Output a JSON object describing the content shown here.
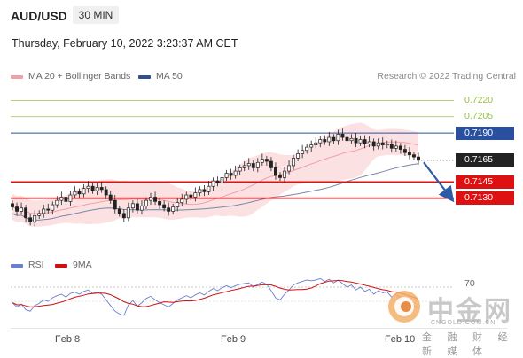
{
  "header": {
    "symbol": "AUD/USD",
    "timeframe": "30 MIN",
    "datetime": "Thursday, February 10, 2022 3:23:37 AM CET"
  },
  "legend": {
    "items": [
      {
        "label": "MA 20 + Bollinger Bands",
        "color": "#f0a0a8"
      },
      {
        "label": "MA 50",
        "color": "#2f4f8f"
      }
    ],
    "credit": "Research © 2022 Trading Central"
  },
  "rsi_legend": {
    "items": [
      {
        "label": "RSI",
        "color": "#6a7fd0"
      },
      {
        "label": "9MA",
        "color": "#cc1111"
      }
    ],
    "level_label": "70"
  },
  "watermark": {
    "name": "中金网",
    "site": "CNGOLD.COM.CN",
    "tagline": "金 融 财 经 新 媒 体"
  },
  "chart_data": {
    "type": "candlestick",
    "yrange": [
      0.708,
      0.7235
    ],
    "current_price": {
      "value": "0.7165",
      "color": "#222222"
    },
    "levels": [
      {
        "value": 0.722,
        "label": "0.7220",
        "kind": "resistance",
        "color": "#9bbf4a"
      },
      {
        "value": 0.7205,
        "label": "0.7205",
        "kind": "resistance",
        "color": "#9bbf4a"
      },
      {
        "value": 0.719,
        "label": "0.7190",
        "kind": "pivot",
        "color": "#2b4f9f"
      },
      {
        "value": 0.7145,
        "label": "0.7145",
        "kind": "support",
        "color": "#dd1111"
      },
      {
        "value": 0.713,
        "label": "0.7130",
        "kind": "support",
        "color": "#dd1111"
      }
    ],
    "x_ticks": [
      "Feb 8",
      "Feb 9",
      "Feb 10"
    ],
    "arrow": {
      "from": 0.7163,
      "to": 0.7132,
      "color": "#2b5aa7"
    },
    "closes": [
      0.7122,
      0.7118,
      0.7121,
      0.7112,
      0.7108,
      0.7114,
      0.7116,
      0.712,
      0.7119,
      0.7124,
      0.7128,
      0.7131,
      0.7127,
      0.7133,
      0.7136,
      0.7134,
      0.7139,
      0.7141,
      0.7137,
      0.714,
      0.7138,
      0.7133,
      0.7128,
      0.712,
      0.7116,
      0.7112,
      0.7121,
      0.7125,
      0.7119,
      0.7123,
      0.7128,
      0.7131,
      0.7127,
      0.7124,
      0.7121,
      0.7118,
      0.7122,
      0.7126,
      0.7129,
      0.7133,
      0.7131,
      0.7135,
      0.7138,
      0.7136,
      0.7141,
      0.7146,
      0.7144,
      0.7149,
      0.7153,
      0.7151,
      0.7155,
      0.7158,
      0.716,
      0.7162,
      0.7158,
      0.7163,
      0.7166,
      0.7164,
      0.7158,
      0.7151,
      0.7149,
      0.7155,
      0.716,
      0.7167,
      0.7171,
      0.7174,
      0.7177,
      0.7179,
      0.7181,
      0.7184,
      0.7182,
      0.7186,
      0.7183,
      0.7189,
      0.7186,
      0.7183,
      0.7185,
      0.7181,
      0.7184,
      0.718,
      0.7182,
      0.7178,
      0.7181,
      0.7179,
      0.718,
      0.7176,
      0.7178,
      0.7175,
      0.7172,
      0.717,
      0.7168,
      0.7165
    ],
    "rsi": [
      48,
      42,
      46,
      38,
      36,
      44,
      47,
      52,
      50,
      55,
      58,
      60,
      56,
      61,
      63,
      60,
      64,
      66,
      61,
      63,
      60,
      52,
      44,
      36,
      32,
      30,
      45,
      51,
      43,
      48,
      54,
      57,
      52,
      48,
      45,
      42,
      47,
      52,
      55,
      58,
      55,
      59,
      62,
      59,
      64,
      68,
      65,
      69,
      72,
      69,
      72,
      74,
      75,
      76,
      70,
      74,
      77,
      74,
      65,
      55,
      52,
      60,
      66,
      73,
      76,
      78,
      80,
      79,
      80,
      82,
      78,
      81,
      76,
      80,
      75,
      70,
      73,
      66,
      70,
      64,
      67,
      60,
      65,
      62,
      63,
      56,
      60,
      55,
      50,
      46,
      44,
      40
    ]
  }
}
